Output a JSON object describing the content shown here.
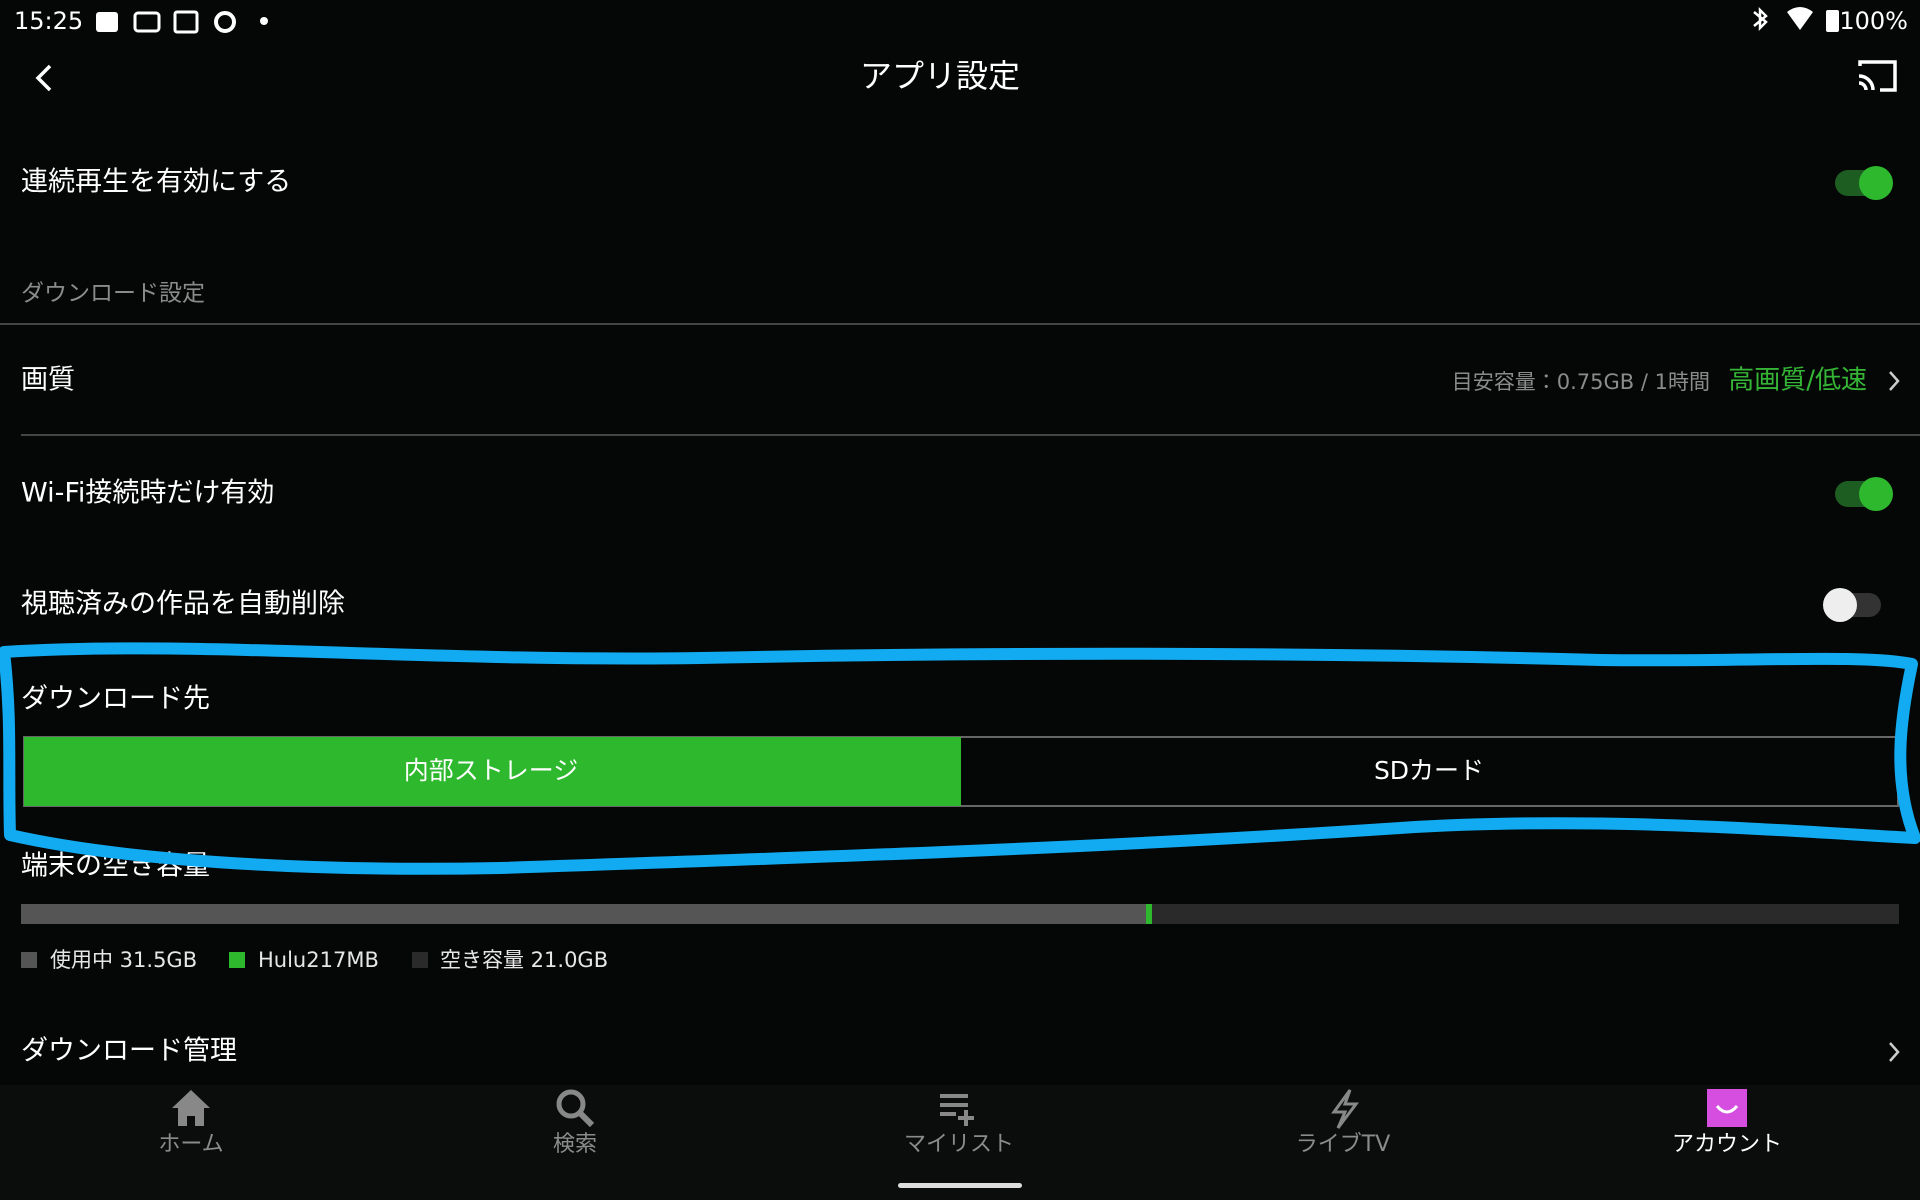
{
  "status_bar": {
    "time": "15:25",
    "battery": "100%"
  },
  "header": {
    "title": "アプリ設定"
  },
  "settings": {
    "continuous_play": "連続再生を有効にする",
    "download_section": "ダウンロード設定",
    "quality": {
      "label": "画質",
      "estimate": "目安容量：0.75GB / 1時間",
      "value": "高画質/低速"
    },
    "wifi_only": "Wi-Fi接続時だけ有効",
    "auto_delete": "視聴済みの作品を自動削除",
    "download_location": {
      "label": "ダウンロード先",
      "options": [
        "内部ストレージ",
        "SDカード"
      ]
    },
    "storage": {
      "label": "端末の空き容量",
      "legend": [
        "使用中 31.5GB",
        "Hulu217MB",
        "空き容量 21.0GB"
      ]
    },
    "download_management": "ダウンロード管理"
  },
  "nav": [
    "ホーム",
    "検索",
    "マイリスト",
    "ライブTV",
    "アカウント"
  ]
}
